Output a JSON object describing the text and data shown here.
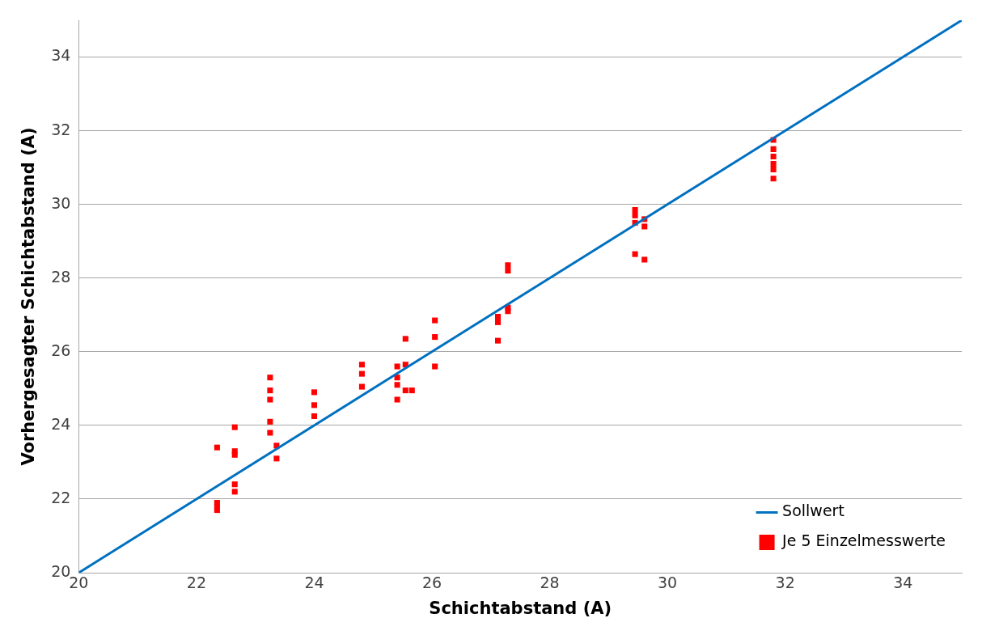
{
  "chart_data": {
    "type": "scatter",
    "xlabel": "Schichtabstand (A)",
    "ylabel": "Vorhergesagter Schichtabstand (A)",
    "xlim": [
      20,
      35
    ],
    "xticks": [
      20,
      22,
      24,
      26,
      28,
      30,
      32,
      34
    ],
    "ylim": [
      20,
      35
    ],
    "yticks": [
      20,
      22,
      24,
      26,
      28,
      30,
      32,
      34
    ],
    "grid": "y",
    "legend": "bottom right",
    "series": [
      {
        "name": "Sollwert",
        "type": "line",
        "color": "#0070c0",
        "marker": "none",
        "line_style": "solid",
        "x": [
          20,
          35
        ],
        "values": [
          20,
          35
        ]
      },
      {
        "name": "Je 5 Einzelmesswerte",
        "type": "scatter",
        "color": "#ff0000",
        "marker": "square",
        "x": [
          22.35,
          22.35,
          22.35,
          22.35,
          22.65,
          22.65,
          22.65,
          22.65,
          22.65,
          23.25,
          23.25,
          23.25,
          23.25,
          23.25,
          23.36,
          23.36,
          24.0,
          24.0,
          24.0,
          24.81,
          24.81,
          24.81,
          25.41,
          25.41,
          25.41,
          25.41,
          25.55,
          25.55,
          25.55,
          25.66,
          26.05,
          26.05,
          26.05,
          27.12,
          27.12,
          27.12,
          27.29,
          27.29,
          27.29,
          27.29,
          29.45,
          29.45,
          29.45,
          29.45,
          29.61,
          29.61,
          29.61,
          31.8,
          31.8,
          31.8,
          31.8,
          31.8,
          31.8
        ],
        "values": [
          23.4,
          21.9,
          21.8,
          21.7,
          23.95,
          23.3,
          23.2,
          22.4,
          22.2,
          25.3,
          24.95,
          24.7,
          24.1,
          23.8,
          23.45,
          23.1,
          24.9,
          24.55,
          24.25,
          25.65,
          25.4,
          25.05,
          25.6,
          25.3,
          25.1,
          24.7,
          26.35,
          25.65,
          24.95,
          24.95,
          26.85,
          26.4,
          25.6,
          26.95,
          26.8,
          26.3,
          28.35,
          28.2,
          27.2,
          27.1,
          29.85,
          29.7,
          29.5,
          28.65,
          29.6,
          29.4,
          28.5,
          31.75,
          31.5,
          31.3,
          31.1,
          30.95,
          30.7
        ]
      }
    ]
  }
}
